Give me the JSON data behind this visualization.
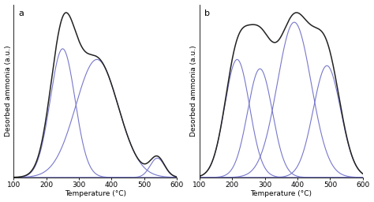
{
  "panel_a": {
    "label": "a",
    "ylabel": "Desorbed ammonia (a.u.)",
    "xlabel": "Temperature (°C)",
    "xlim": [
      100,
      600
    ],
    "ylim_factor": 1.05,
    "components": [
      {
        "mu": 250,
        "sigma": 38,
        "amp": 0.6
      },
      {
        "mu": 355,
        "sigma": 65,
        "amp": 0.55
      },
      {
        "mu": 540,
        "sigma": 22,
        "amp": 0.09
      }
    ],
    "black_line_color": "#222222",
    "blue_line_color": "#7777cc"
  },
  "panel_b": {
    "label": "b",
    "ylabel": "Desorbed ammonia (a.u.)",
    "xlabel": "Temperature (°C)",
    "xlim": [
      100,
      600
    ],
    "ylim_factor": 1.05,
    "components": [
      {
        "mu": 215,
        "sigma": 38,
        "amp": 0.38
      },
      {
        "mu": 285,
        "sigma": 38,
        "amp": 0.35
      },
      {
        "mu": 390,
        "sigma": 52,
        "amp": 0.5
      },
      {
        "mu": 490,
        "sigma": 42,
        "amp": 0.36
      }
    ],
    "black_line_color": "#222222",
    "blue_line_color": "#7777cc"
  },
  "background_color": "#ffffff",
  "tick_fontsize": 6.5,
  "label_fontsize": 6.5,
  "panel_label_fontsize": 8,
  "linewidth_blue": 0.8,
  "linewidth_black": 1.1
}
